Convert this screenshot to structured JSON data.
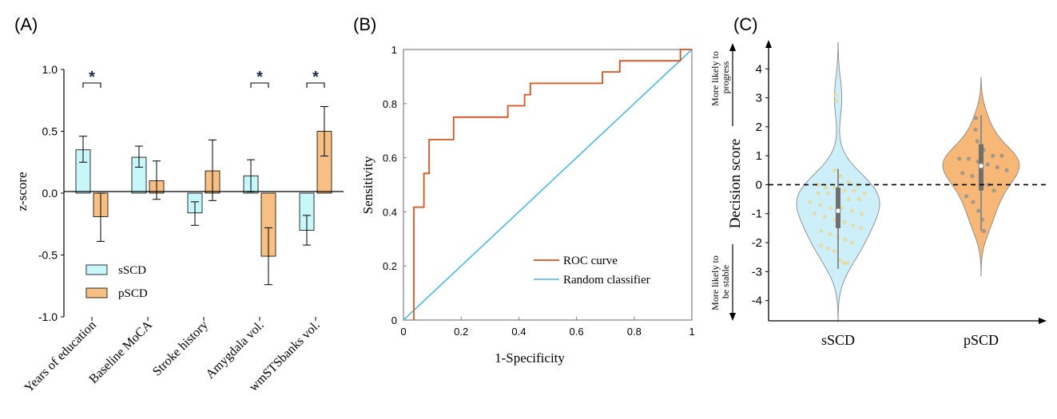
{
  "colors": {
    "sscd": "#c8f7fa",
    "pscd": "#f8bf84",
    "roc": "#d5541f",
    "random": "#4fb7e0",
    "violin_s": "#cdeff9",
    "violin_p": "#f6b777",
    "axis": "#000000",
    "frame": "#7f7f7f"
  },
  "chart_data": [
    {
      "panel": "(A)",
      "type": "bar",
      "ylabel": "z-score",
      "ylim": [
        -1.0,
        1.0
      ],
      "yticks": [
        "1.0",
        "0.5",
        "0.0",
        "-0.5",
        "-1.0"
      ],
      "ytick_values": [
        1.0,
        0.5,
        0.0,
        -0.5,
        -1.0
      ],
      "categories": [
        "Years of education",
        "Baseline MoCA",
        "Stroke history",
        "Amygdala vol.",
        "wmSTSbanks vol."
      ],
      "series": [
        {
          "name": "sSCD",
          "values": [
            0.35,
            0.29,
            -0.16,
            0.14,
            -0.3
          ],
          "err_low": [
            0.25,
            0.21,
            -0.26,
            0.01,
            -0.42
          ],
          "err_high": [
            0.46,
            0.38,
            -0.07,
            0.27,
            -0.18
          ]
        },
        {
          "name": "pSCD",
          "values": [
            -0.19,
            0.1,
            0.18,
            -0.51,
            0.5
          ],
          "err_low": [
            -0.39,
            -0.05,
            -0.06,
            -0.74,
            0.3
          ],
          "err_high": [
            0.0,
            0.26,
            0.43,
            -0.28,
            0.7
          ]
        }
      ],
      "significance": [
        {
          "category": 0,
          "label": "*"
        },
        {
          "category": 3,
          "label": "*"
        },
        {
          "category": 4,
          "label": "*"
        }
      ],
      "legend": "bottom-left"
    },
    {
      "panel": "(B)",
      "type": "line",
      "xlabel": "1-Specificity",
      "ylabel": "Sensitivity",
      "xlim": [
        0,
        1
      ],
      "ylim": [
        0,
        1
      ],
      "xticks": [
        "0",
        "0.2",
        "0.4",
        "0.6",
        "0.8",
        "1"
      ],
      "xtick_values": [
        0,
        0.2,
        0.4,
        0.6,
        0.8,
        1
      ],
      "yticks": [
        "0",
        "0.2",
        "0.4",
        "0.6",
        "0.8",
        "1"
      ],
      "ytick_values": [
        0,
        0.2,
        0.4,
        0.6,
        0.8,
        1
      ],
      "series": [
        {
          "name": "ROC curve",
          "x": [
            0.036,
            0.036,
            0.071,
            0.071,
            0.089,
            0.089,
            0.174,
            0.174,
            0.362,
            0.362,
            0.42,
            0.42,
            0.44,
            0.44,
            0.69,
            0.69,
            0.75,
            0.75,
            0.96,
            0.96,
            1.0
          ],
          "y": [
            0.0,
            0.417,
            0.417,
            0.542,
            0.542,
            0.667,
            0.667,
            0.75,
            0.75,
            0.792,
            0.792,
            0.833,
            0.833,
            0.875,
            0.875,
            0.917,
            0.917,
            0.958,
            0.958,
            1.0,
            1.0
          ]
        },
        {
          "name": "Random classifier",
          "x": [
            0,
            1
          ],
          "y": [
            0,
            1
          ]
        }
      ],
      "legend": "bottom-right"
    },
    {
      "panel": "(C)",
      "type": "scatter",
      "subtype": "violin",
      "ylabel": "Decision score",
      "ylim": [
        -4.7,
        5.0
      ],
      "yticks": [
        "4",
        "3",
        "2",
        "1",
        "0",
        "-1",
        "-2",
        "-3",
        "-4"
      ],
      "ytick_values": [
        4,
        3,
        2,
        1,
        0,
        -1,
        -2,
        -3,
        -4
      ],
      "threshold": 0,
      "annotation_top": [
        "More likely to",
        "progress"
      ],
      "annotation_bottom": [
        "More likely to",
        "be stable"
      ],
      "categories": [
        "sSCD",
        "pSCD"
      ],
      "groups": [
        {
          "name": "sSCD",
          "median": -0.9,
          "q1": -1.5,
          "q3": -0.1,
          "whisker_low": -2.9,
          "whisker_high": 0.55,
          "points": [
            3.1,
            2.9,
            0.5,
            0.3,
            0.1,
            0.0,
            0.0,
            -0.1,
            -0.1,
            -0.2,
            -0.2,
            -0.3,
            -0.3,
            -0.3,
            -0.4,
            -0.5,
            -0.5,
            -0.6,
            -0.7,
            -0.8,
            -0.8,
            -0.9,
            -1.0,
            -1.0,
            -1.1,
            -1.2,
            -1.3,
            -1.4,
            -1.5,
            -1.6,
            -1.7,
            -1.8,
            -1.9,
            -2.0,
            -2.1,
            -2.2,
            -2.3,
            -2.6,
            -2.7,
            -2.7
          ]
        },
        {
          "name": "pSCD",
          "median": 0.65,
          "q1": -0.2,
          "q3": 1.4,
          "whisker_low": -1.6,
          "whisker_high": 2.4,
          "points": [
            2.3,
            1.9,
            1.5,
            1.2,
            1.0,
            1.0,
            0.9,
            0.9,
            0.8,
            0.7,
            0.6,
            0.5,
            0.4,
            0.3,
            0.2,
            0.0,
            -0.2,
            -0.4,
            -0.6,
            -0.9,
            -1.2,
            -1.6
          ]
        }
      ]
    }
  ]
}
